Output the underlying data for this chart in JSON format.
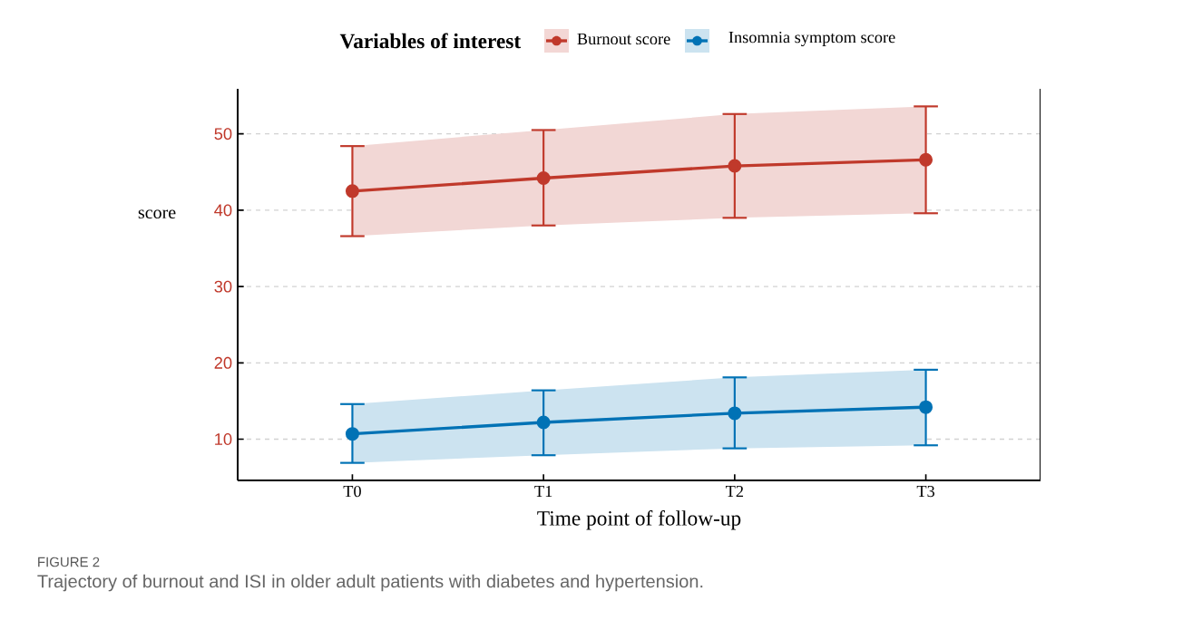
{
  "chart_data": {
    "type": "line",
    "xlabel": "Time point of follow-up",
    "ylabel": "score",
    "legend_title": "Variables of interest",
    "categories": [
      "T0",
      "T1",
      "T2",
      "T3"
    ],
    "series": [
      {
        "name": "Burnout score",
        "color": "#c0392b",
        "values": [
          42.5,
          44.2,
          45.8,
          46.6
        ],
        "errors": [
          [
            36.6,
            48.4
          ],
          [
            38.0,
            50.5
          ],
          [
            39.0,
            52.6
          ],
          [
            39.6,
            53.6
          ]
        ],
        "lower": [
          36.6,
          38.0,
          39.0,
          39.6
        ],
        "upper": [
          48.4,
          50.5,
          52.6,
          53.6
        ]
      },
      {
        "name": "Insomnia symptom score",
        "color": "#0072b5",
        "values": [
          10.7,
          12.2,
          13.4,
          14.2
        ],
        "errors": [
          [
            6.9,
            14.6
          ],
          [
            7.9,
            16.4
          ],
          [
            8.8,
            18.1
          ],
          [
            9.2,
            19.1
          ]
        ],
        "lower": [
          6.9,
          7.9,
          8.8,
          9.2
        ],
        "upper": [
          14.6,
          16.4,
          18.1,
          19.1
        ]
      }
    ],
    "ylim": [
      4.6,
      55.9
    ],
    "yticks": [
      10,
      20,
      30,
      40,
      50
    ],
    "grid": "y",
    "legend": "top",
    "marker": "circle",
    "line_style": "solid",
    "annotations": [
      "FIGURE 2",
      "Trajectory of burnout and ISI in older adult patients with diabetes and hypertension."
    ]
  }
}
